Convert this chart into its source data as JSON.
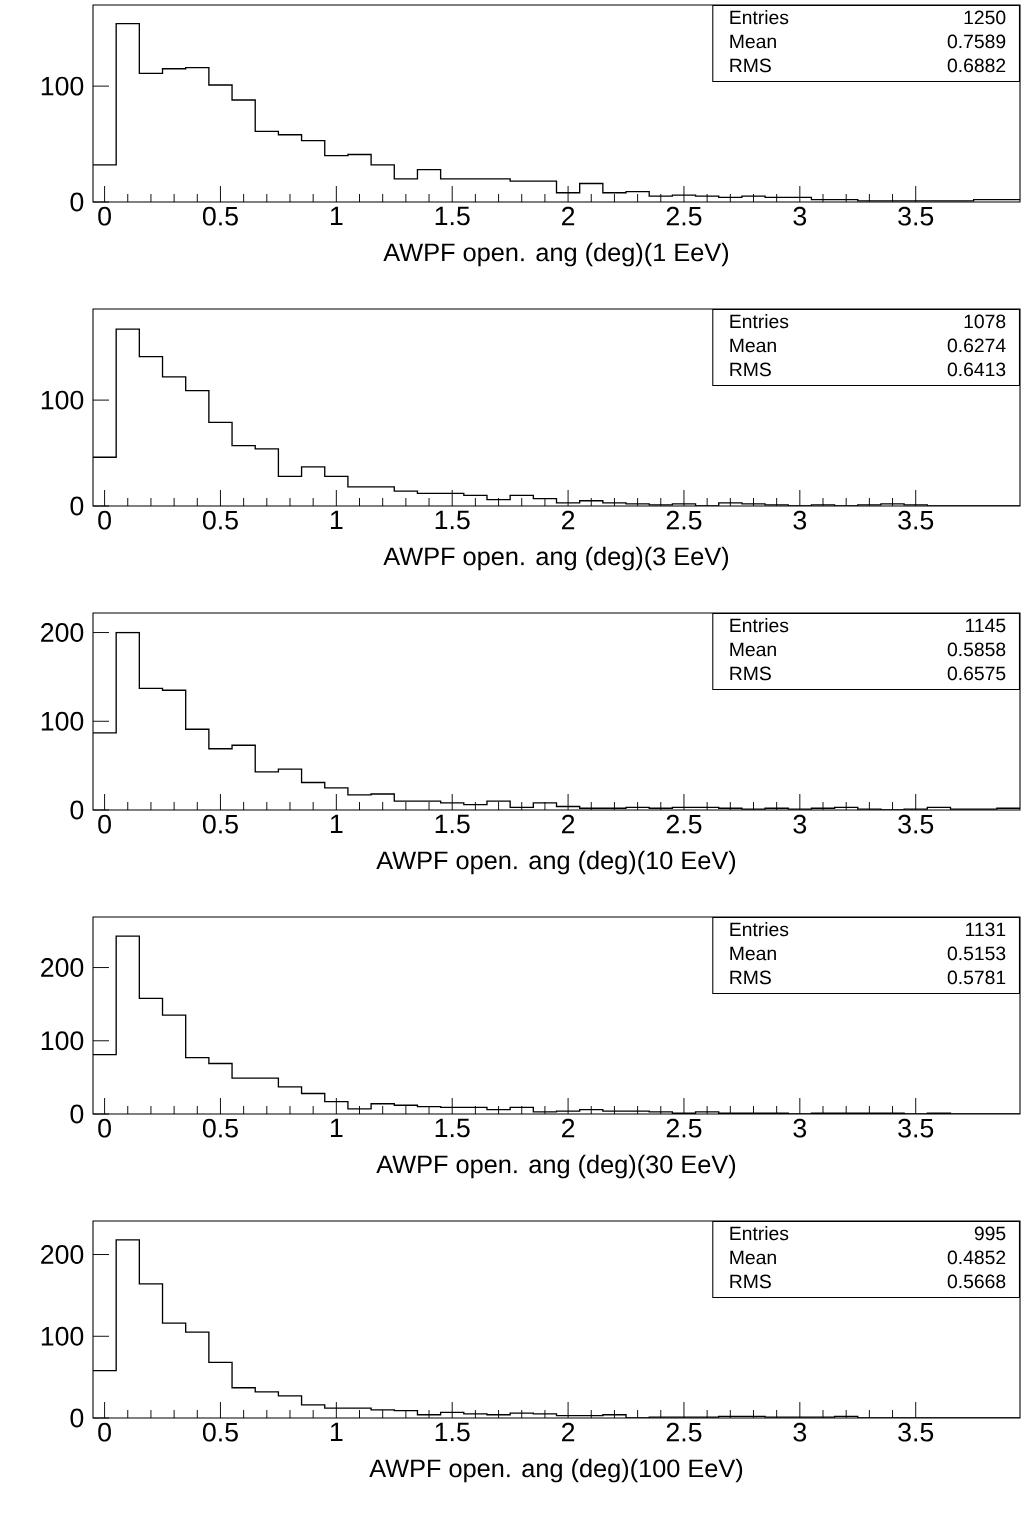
{
  "chart_data": [
    {
      "type": "histogram",
      "xlabel": "AWPF open. ang (deg)(1 EeV)",
      "bins": [
        -0.05,
        0.05,
        0.15,
        0.25,
        0.35,
        0.45,
        0.55,
        0.65,
        0.75,
        0.85,
        0.95,
        1.05,
        1.15,
        1.25,
        1.35,
        1.45,
        1.55,
        1.65,
        1.75,
        1.85,
        1.95,
        2.05,
        2.15,
        2.25,
        2.35,
        2.45,
        2.55,
        2.65,
        2.75,
        2.85,
        2.95,
        3.05,
        3.15,
        3.25,
        3.35,
        3.45,
        3.55,
        3.65,
        3.75,
        3.85,
        3.95
      ],
      "values": [
        32,
        154,
        111,
        115,
        116,
        101,
        88,
        61,
        58,
        53,
        40,
        41,
        32,
        20,
        28,
        20,
        20,
        20,
        18,
        18,
        8,
        16,
        8,
        9,
        5,
        6,
        5,
        4,
        5,
        4,
        4,
        2,
        2,
        1,
        1,
        1,
        1,
        1,
        2,
        2
      ],
      "color": "#000000",
      "xlim": [
        -0.05,
        3.95
      ],
      "ylim": [
        0,
        170
      ],
      "xticks": [
        0,
        0.5,
        1,
        1.5,
        2,
        2.5,
        3,
        3.5
      ],
      "yticks": [
        0,
        100
      ],
      "annotations": [
        "Entries",
        "1250",
        "Mean",
        "0.7589",
        "RMS",
        "0.6882"
      ]
    },
    {
      "type": "histogram",
      "xlabel": "AWPF open. ang (deg)(3 EeV)",
      "bins": [
        -0.05,
        0.05,
        0.15,
        0.25,
        0.35,
        0.45,
        0.55,
        0.65,
        0.75,
        0.85,
        0.95,
        1.05,
        1.15,
        1.25,
        1.35,
        1.45,
        1.55,
        1.65,
        1.75,
        1.85,
        1.95,
        2.05,
        2.15,
        2.25,
        2.35,
        2.45,
        2.55,
        2.65,
        2.75,
        2.85,
        2.95,
        3.05,
        3.15,
        3.25,
        3.35,
        3.45,
        3.55,
        3.65,
        3.75,
        3.85,
        3.95
      ],
      "values": [
        46,
        167,
        141,
        122,
        109,
        79,
        57,
        54,
        28,
        37,
        28,
        18,
        18,
        14,
        12,
        12,
        10,
        6,
        10,
        7,
        3,
        5,
        3,
        2,
        1,
        2,
        0,
        3,
        2,
        1,
        0,
        1,
        0,
        1,
        2,
        1,
        0,
        0,
        0,
        0
      ],
      "color": "#000000",
      "xlim": [
        -0.05,
        3.95
      ],
      "ylim": [
        0,
        186
      ],
      "xticks": [
        0,
        0.5,
        1,
        1.5,
        2,
        2.5,
        3,
        3.5
      ],
      "yticks": [
        0,
        100
      ],
      "annotations": [
        "Entries",
        "1078",
        "Mean",
        "0.6274",
        "RMS",
        "0.6413"
      ]
    },
    {
      "type": "histogram",
      "xlabel": "AWPF open. ang (deg)(10 EeV)",
      "bins": [
        -0.05,
        0.05,
        0.15,
        0.25,
        0.35,
        0.45,
        0.55,
        0.65,
        0.75,
        0.85,
        0.95,
        1.05,
        1.15,
        1.25,
        1.35,
        1.45,
        1.55,
        1.65,
        1.75,
        1.85,
        1.95,
        2.05,
        2.15,
        2.25,
        2.35,
        2.45,
        2.55,
        2.65,
        2.75,
        2.85,
        2.95,
        3.05,
        3.15,
        3.25,
        3.35,
        3.45,
        3.55,
        3.65,
        3.75,
        3.85,
        3.95
      ],
      "values": [
        87,
        200,
        137,
        135,
        91,
        69,
        73,
        43,
        46,
        31,
        25,
        17,
        18,
        10,
        10,
        8,
        6,
        10,
        3,
        8,
        4,
        2,
        2,
        3,
        2,
        3,
        3,
        2,
        1,
        2,
        1,
        2,
        3,
        1,
        0,
        1,
        3,
        1,
        1,
        2
      ],
      "color": "#000000",
      "xlim": [
        -0.05,
        3.95
      ],
      "ylim": [
        0,
        222
      ],
      "xticks": [
        0,
        0.5,
        1,
        1.5,
        2,
        2.5,
        3,
        3.5
      ],
      "yticks": [
        0,
        100,
        200
      ],
      "annotations": [
        "Entries",
        "1145",
        "Mean",
        "0.5858",
        "RMS",
        "0.6575"
      ]
    },
    {
      "type": "histogram",
      "xlabel": "AWPF open. ang (deg)(30 EeV)",
      "bins": [
        -0.05,
        0.05,
        0.15,
        0.25,
        0.35,
        0.45,
        0.55,
        0.65,
        0.75,
        0.85,
        0.95,
        1.05,
        1.15,
        1.25,
        1.35,
        1.45,
        1.55,
        1.65,
        1.75,
        1.85,
        1.95,
        2.05,
        2.15,
        2.25,
        2.35,
        2.45,
        2.55,
        2.65,
        2.75,
        2.85,
        2.95,
        3.05,
        3.15,
        3.25,
        3.35,
        3.45,
        3.55,
        3.65,
        3.75,
        3.85,
        3.95
      ],
      "values": [
        81,
        243,
        158,
        135,
        77,
        69,
        49,
        49,
        37,
        28,
        17,
        7,
        14,
        12,
        10,
        9,
        9,
        6,
        9,
        3,
        4,
        6,
        4,
        4,
        3,
        1,
        3,
        1,
        1,
        1,
        0,
        1,
        1,
        1,
        1,
        0,
        1,
        0,
        0,
        0
      ],
      "color": "#000000",
      "xlim": [
        -0.05,
        3.95
      ],
      "ylim": [
        0,
        269
      ],
      "xticks": [
        0,
        0.5,
        1,
        1.5,
        2,
        2.5,
        3,
        3.5
      ],
      "yticks": [
        0,
        100,
        200
      ],
      "annotations": [
        "Entries",
        "1131",
        "Mean",
        "0.5153",
        "RMS",
        "0.5781"
      ]
    },
    {
      "type": "histogram",
      "xlabel": "AWPF open. ang (deg)(100 EeV)",
      "bins": [
        -0.05,
        0.05,
        0.15,
        0.25,
        0.35,
        0.45,
        0.55,
        0.65,
        0.75,
        0.85,
        0.95,
        1.05,
        1.15,
        1.25,
        1.35,
        1.45,
        1.55,
        1.65,
        1.75,
        1.85,
        1.95,
        2.05,
        2.15,
        2.25,
        2.35,
        2.45,
        2.55,
        2.65,
        2.75,
        2.85,
        2.95,
        3.05,
        3.15,
        3.25,
        3.35,
        3.45,
        3.55,
        3.65,
        3.75,
        3.85,
        3.95
      ],
      "values": [
        58,
        218,
        164,
        116,
        105,
        68,
        37,
        32,
        27,
        16,
        12,
        12,
        10,
        9,
        4,
        7,
        5,
        4,
        6,
        5,
        3,
        3,
        4,
        0,
        1,
        1,
        1,
        2,
        2,
        1,
        1,
        1,
        2,
        0,
        0,
        0,
        0,
        0,
        0,
        0
      ],
      "color": "#000000",
      "xlim": [
        -0.05,
        3.95
      ],
      "ylim": [
        0,
        241
      ],
      "xticks": [
        0,
        0.5,
        1,
        1.5,
        2,
        2.5,
        3,
        3.5
      ],
      "yticks": [
        0,
        100,
        200
      ],
      "annotations": [
        "Entries",
        "995",
        "Mean",
        "0.4852",
        "RMS",
        "0.5668"
      ]
    }
  ]
}
